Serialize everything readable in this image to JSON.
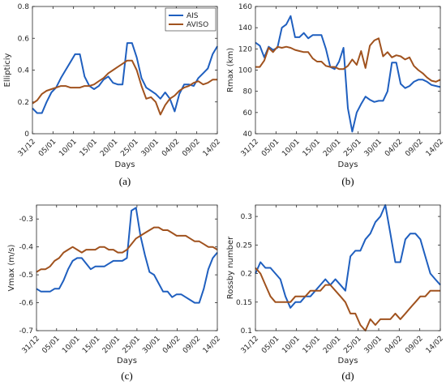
{
  "colors": {
    "AIS": "#1f5fbf",
    "AVISO": "#a0521e",
    "axis": "#262626",
    "grid": "#e6e6e6"
  },
  "chart_data": [
    {
      "type": "line",
      "panel": "a",
      "caption": "(a)",
      "xlabel": "Days",
      "ylabel": "Ellipticiy",
      "x_ticks": [
        "31/12",
        "05/01",
        "10/01",
        "15/01",
        "20/01",
        "25/01",
        "30/01",
        "04/02",
        "09/02",
        "14/02"
      ],
      "ylim": [
        0,
        0.8
      ],
      "yticks": [
        "0",
        "0.2",
        "0.4",
        "0.6",
        "0.8"
      ],
      "legend": {
        "placement": "top-right",
        "entries": [
          "AIS",
          "AVISO"
        ]
      },
      "series": [
        {
          "name": "AIS",
          "values": [
            0.16,
            0.13,
            0.13,
            0.2,
            0.26,
            0.29,
            0.35,
            0.4,
            0.45,
            0.5,
            0.5,
            0.36,
            0.3,
            0.28,
            0.3,
            0.34,
            0.36,
            0.32,
            0.31,
            0.31,
            0.57,
            0.57,
            0.48,
            0.35,
            0.29,
            0.27,
            0.25,
            0.22,
            0.26,
            0.22,
            0.14,
            0.25,
            0.31,
            0.31,
            0.3,
            0.35,
            0.38,
            0.41,
            0.5,
            0.55
          ]
        },
        {
          "name": "AVISO",
          "values": [
            0.19,
            0.21,
            0.25,
            0.27,
            0.28,
            0.29,
            0.3,
            0.3,
            0.29,
            0.29,
            0.29,
            0.3,
            0.3,
            0.31,
            0.33,
            0.35,
            0.38,
            0.4,
            0.42,
            0.44,
            0.46,
            0.46,
            0.4,
            0.3,
            0.22,
            0.23,
            0.2,
            0.12,
            0.18,
            0.22,
            0.24,
            0.27,
            0.29,
            0.3,
            0.32,
            0.33,
            0.31,
            0.32,
            0.34,
            0.34
          ]
        }
      ]
    },
    {
      "type": "line",
      "panel": "b",
      "caption": "(b)",
      "xlabel": "Days",
      "ylabel": "Rmax (km)",
      "x_ticks": [
        "31/12",
        "05/01",
        "10/01",
        "15/01",
        "20/01",
        "25/01",
        "30/01",
        "04/02",
        "09/02",
        "14/02"
      ],
      "ylim": [
        40,
        160
      ],
      "yticks": [
        "40",
        "60",
        "80",
        "100",
        "120",
        "140",
        "160"
      ],
      "series": [
        {
          "name": "AIS",
          "values": [
            126,
            123,
            112,
            122,
            119,
            121,
            140,
            143,
            151,
            131,
            131,
            135,
            130,
            133,
            133,
            133,
            120,
            103,
            101,
            108,
            121,
            64,
            42,
            60,
            68,
            75,
            72,
            70,
            71,
            71,
            80,
            107,
            107,
            87,
            83,
            85,
            89,
            91,
            91,
            89,
            86,
            85,
            84
          ]
        },
        {
          "name": "AVISO",
          "values": [
            103,
            103,
            109,
            121,
            117,
            122,
            121,
            122,
            121,
            119,
            118,
            117,
            117,
            111,
            108,
            108,
            104,
            103,
            103,
            101,
            101,
            104,
            110,
            105,
            118,
            102,
            123,
            128,
            130,
            113,
            117,
            112,
            114,
            113,
            110,
            112,
            104,
            100,
            97,
            93,
            90,
            89,
            91
          ]
        }
      ]
    },
    {
      "type": "line",
      "panel": "c",
      "caption": "(c)",
      "xlabel": "Days",
      "ylabel": "Vmax (m/s)",
      "x_ticks": [
        "31/12",
        "05/01",
        "10/01",
        "15/01",
        "20/01",
        "25/01",
        "30/01",
        "04/02",
        "09/02",
        "14/02"
      ],
      "ylim": [
        -0.7,
        -0.25
      ],
      "yticks": [
        "-0.7",
        "-0.6",
        "-0.5",
        "-0.4",
        "-0.3"
      ],
      "series": [
        {
          "name": "AIS",
          "values": [
            -0.55,
            -0.56,
            -0.56,
            -0.56,
            -0.55,
            -0.55,
            -0.52,
            -0.48,
            -0.45,
            -0.44,
            -0.44,
            -0.46,
            -0.48,
            -0.47,
            -0.47,
            -0.47,
            -0.46,
            -0.45,
            -0.45,
            -0.45,
            -0.44,
            -0.27,
            -0.26,
            -0.36,
            -0.43,
            -0.49,
            -0.5,
            -0.53,
            -0.56,
            -0.56,
            -0.58,
            -0.57,
            -0.57,
            -0.58,
            -0.59,
            -0.6,
            -0.6,
            -0.55,
            -0.48,
            -0.44,
            -0.42
          ]
        },
        {
          "name": "AVISO",
          "values": [
            -0.49,
            -0.48,
            -0.48,
            -0.47,
            -0.45,
            -0.44,
            -0.42,
            -0.41,
            -0.4,
            -0.41,
            -0.42,
            -0.41,
            -0.41,
            -0.41,
            -0.4,
            -0.4,
            -0.41,
            -0.41,
            -0.42,
            -0.42,
            -0.41,
            -0.39,
            -0.37,
            -0.36,
            -0.35,
            -0.34,
            -0.33,
            -0.33,
            -0.34,
            -0.34,
            -0.35,
            -0.36,
            -0.36,
            -0.36,
            -0.37,
            -0.38,
            -0.38,
            -0.39,
            -0.4,
            -0.4,
            -0.41
          ]
        }
      ]
    },
    {
      "type": "line",
      "panel": "d",
      "caption": "(d)",
      "xlabel": "Days",
      "ylabel": "Rossby number",
      "x_ticks": [
        "31/12",
        "05/01",
        "10/01",
        "15/01",
        "20/01",
        "25/01",
        "30/01",
        "04/02",
        "09/02",
        "14/02"
      ],
      "ylim": [
        0.1,
        0.32
      ],
      "yticks": [
        "0.1",
        "0.15",
        "0.2",
        "0.25",
        "0.3"
      ],
      "series": [
        {
          "name": "AIS",
          "values": [
            0.2,
            0.22,
            0.21,
            0.21,
            0.2,
            0.19,
            0.16,
            0.14,
            0.15,
            0.15,
            0.16,
            0.16,
            0.17,
            0.18,
            0.19,
            0.18,
            0.19,
            0.18,
            0.17,
            0.23,
            0.24,
            0.24,
            0.26,
            0.27,
            0.29,
            0.3,
            0.32,
            0.27,
            0.22,
            0.22,
            0.26,
            0.27,
            0.27,
            0.26,
            0.23,
            0.2,
            0.19,
            0.18
          ]
        },
        {
          "name": "AVISO",
          "values": [
            0.21,
            0.2,
            0.18,
            0.16,
            0.15,
            0.15,
            0.15,
            0.15,
            0.16,
            0.16,
            0.16,
            0.17,
            0.17,
            0.17,
            0.18,
            0.18,
            0.17,
            0.16,
            0.15,
            0.13,
            0.13,
            0.11,
            0.1,
            0.12,
            0.11,
            0.12,
            0.12,
            0.12,
            0.13,
            0.12,
            0.13,
            0.14,
            0.15,
            0.16,
            0.16,
            0.17,
            0.17,
            0.17
          ]
        }
      ]
    }
  ]
}
